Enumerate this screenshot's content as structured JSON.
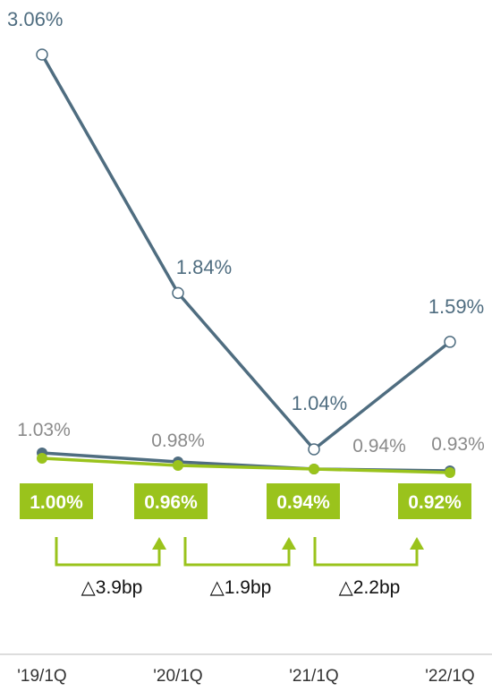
{
  "chart_data": {
    "type": "line",
    "categories": [
      "'19/1Q",
      "'20/1Q",
      "'21/1Q",
      "'22/1Q"
    ],
    "series": [
      {
        "values": [
          3.06,
          1.84,
          1.04,
          1.59
        ],
        "labels": [
          "3.06%",
          "1.84%",
          "1.04%",
          "1.59%"
        ]
      },
      {
        "values": [
          1.03,
          0.98,
          0.94,
          0.93
        ],
        "labels": [
          "1.03%",
          "0.98%",
          "0.94%",
          "0.93%"
        ]
      },
      {
        "values": [
          1.0,
          0.96,
          0.94,
          0.92
        ],
        "labels": [
          "1.00%",
          "0.96%",
          "0.94%",
          "0.92%"
        ]
      }
    ],
    "changes": [
      "△3.9bp",
      "△1.9bp",
      "△2.2bp"
    ],
    "title": "",
    "xlabel": "",
    "ylabel": "",
    "grid": false,
    "legend": "none"
  },
  "colors": {
    "blue": "#4f6d80",
    "gray_label": "#8a8a8a",
    "green": "#9ac31c",
    "axis": "#bbbbbb"
  }
}
